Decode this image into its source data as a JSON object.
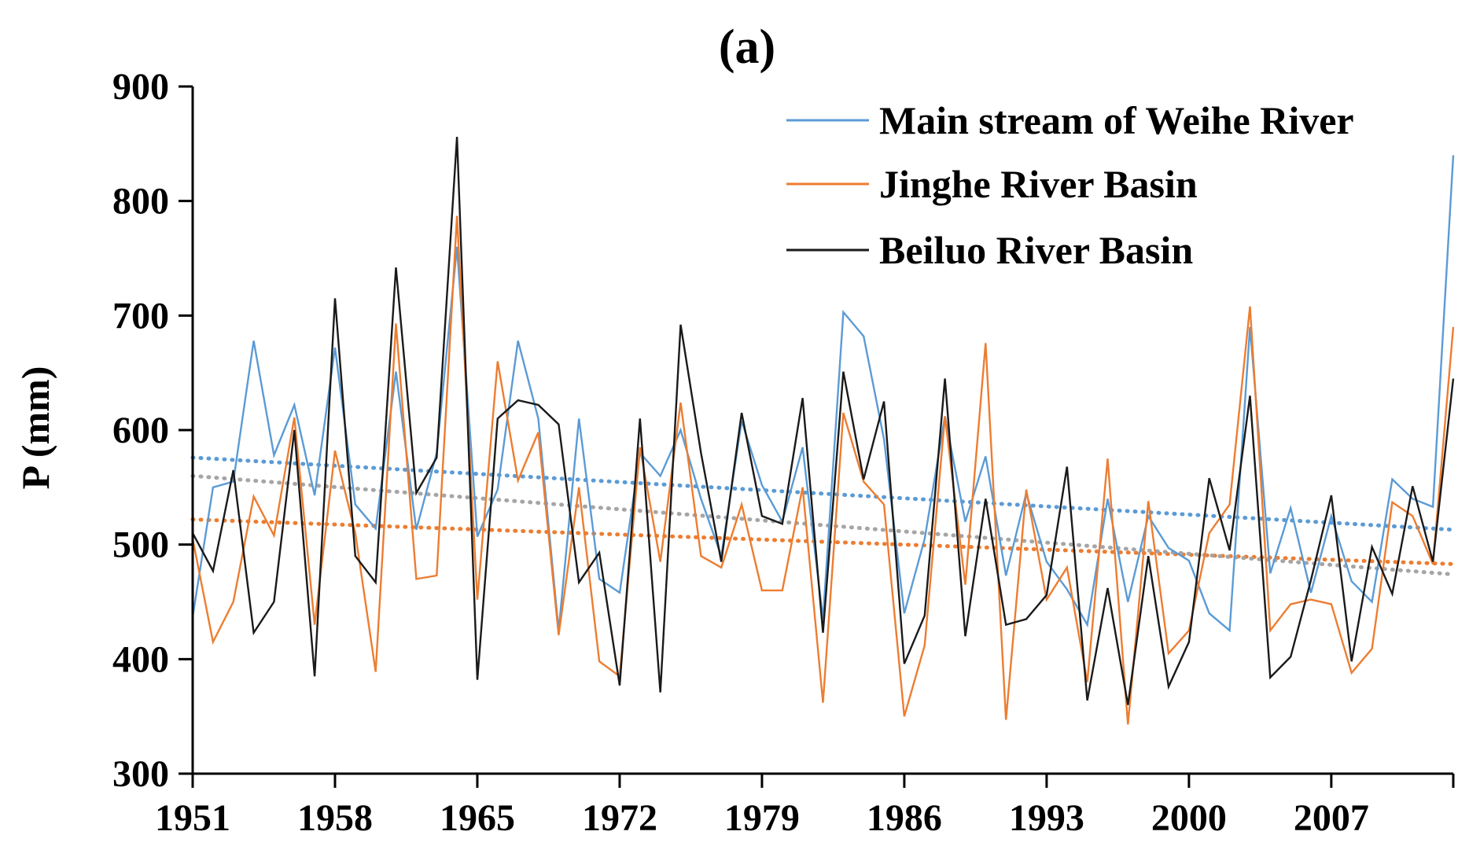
{
  "chart_data": {
    "type": "line",
    "title": "(a)",
    "xlabel": "",
    "ylabel": "P (mm)",
    "x": [
      1951,
      1952,
      1953,
      1954,
      1955,
      1956,
      1957,
      1958,
      1959,
      1960,
      1961,
      1962,
      1963,
      1964,
      1965,
      1966,
      1967,
      1968,
      1969,
      1970,
      1971,
      1972,
      1973,
      1974,
      1975,
      1976,
      1977,
      1978,
      1979,
      1980,
      1981,
      1982,
      1983,
      1984,
      1985,
      1986,
      1987,
      1988,
      1989,
      1990,
      1991,
      1992,
      1993,
      1994,
      1995,
      1996,
      1997,
      1998,
      1999,
      2000,
      2001,
      2002,
      2003,
      2004,
      2005,
      2006,
      2007,
      2008,
      2009,
      2010,
      2011,
      2012,
      2013
    ],
    "xlim": [
      1951,
      2013
    ],
    "xticks": [
      "1951",
      "1958",
      "1965",
      "1972",
      "1979",
      "1986",
      "1993",
      "2000",
      "2007"
    ],
    "ylim": [
      300,
      900
    ],
    "yticks": [
      "300",
      "400",
      "500",
      "600",
      "700",
      "800",
      "900"
    ],
    "legend_position": "top-right",
    "series": [
      {
        "name": "Main stream of Weihe River",
        "color": "#5b9bd5",
        "values": [
          437,
          550,
          555,
          678,
          578,
          622,
          543,
          672,
          535,
          514,
          651,
          513,
          580,
          760,
          507,
          548,
          678,
          610,
          425,
          610,
          470,
          458,
          580,
          560,
          600,
          540,
          490,
          608,
          552,
          520,
          585,
          435,
          703,
          682,
          592,
          440,
          505,
          612,
          520,
          577,
          473,
          545,
          485,
          461,
          430,
          540,
          450,
          525,
          497,
          486,
          440,
          425,
          690,
          475,
          532,
          458,
          525,
          468,
          450,
          557,
          540,
          533,
          840
        ]
      },
      {
        "name": "Jinghe River Basin",
        "color": "#ed7d31",
        "values": [
          505,
          415,
          450,
          542,
          508,
          611,
          430,
          582,
          510,
          389,
          693,
          470,
          473,
          787,
          452,
          660,
          556,
          598,
          421,
          550,
          398,
          385,
          585,
          485,
          624,
          490,
          480,
          535,
          460,
          460,
          550,
          362,
          615,
          555,
          535,
          350,
          412,
          612,
          465,
          676,
          347,
          548,
          452,
          480,
          380,
          575,
          343,
          538,
          405,
          425,
          510,
          535,
          708,
          425,
          448,
          452,
          448,
          388,
          409,
          537,
          525,
          483,
          690
        ]
      },
      {
        "name": "Beiluo River Basin",
        "color": "#1a1a1a",
        "values": [
          510,
          477,
          565,
          423,
          450,
          600,
          385,
          715,
          490,
          467,
          742,
          545,
          576,
          856,
          382,
          610,
          626,
          622,
          605,
          467,
          493,
          377,
          610,
          371,
          692,
          580,
          485,
          615,
          525,
          518,
          628,
          423,
          651,
          557,
          625,
          396,
          438,
          645,
          420,
          540,
          430,
          435,
          456,
          568,
          364,
          462,
          360,
          490,
          376,
          415,
          558,
          495,
          630,
          384,
          402,
          469,
          543,
          398,
          498,
          457,
          551,
          485,
          645
        ]
      }
    ],
    "trendlines": [
      {
        "series": "Main stream of Weihe River",
        "color": "#5b9bd5",
        "start": 576,
        "end": 513
      },
      {
        "series": "Jinghe River Basin",
        "color": "#ed7d31",
        "start": 522,
        "end": 483
      },
      {
        "series": "Beiluo River Basin",
        "color": "#a5a5a5",
        "start": 560,
        "end": 474
      }
    ]
  }
}
